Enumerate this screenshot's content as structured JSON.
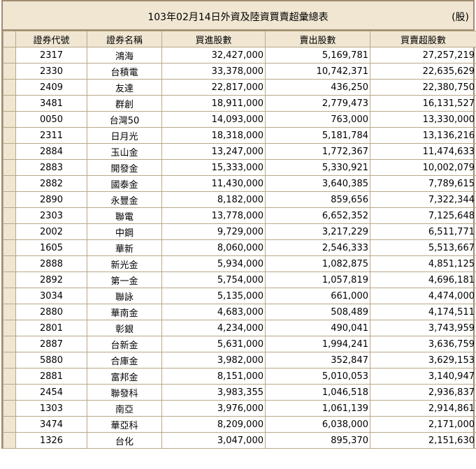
{
  "title": "103年02月14日外資及陸資買賣超彙總表",
  "unit": "(股)",
  "columns": [
    "證券代號",
    "證券名稱",
    "買進股數",
    "賣出股數",
    "買賣超股數"
  ],
  "rows": [
    {
      "code": "2317",
      "name": "鴻海",
      "buy": "32,427,000",
      "sell": "5,169,781",
      "net": "27,257,219"
    },
    {
      "code": "2330",
      "name": "台積電",
      "buy": "33,378,000",
      "sell": "10,742,371",
      "net": "22,635,629"
    },
    {
      "code": "2409",
      "name": "友達",
      "buy": "22,817,000",
      "sell": "436,250",
      "net": "22,380,750"
    },
    {
      "code": "3481",
      "name": "群創",
      "buy": "18,911,000",
      "sell": "2,779,473",
      "net": "16,131,527"
    },
    {
      "code": "0050",
      "name": "台灣50",
      "buy": "14,093,000",
      "sell": "763,000",
      "net": "13,330,000"
    },
    {
      "code": "2311",
      "name": "日月光",
      "buy": "18,318,000",
      "sell": "5,181,784",
      "net": "13,136,216"
    },
    {
      "code": "2884",
      "name": "玉山金",
      "buy": "13,247,000",
      "sell": "1,772,367",
      "net": "11,474,633"
    },
    {
      "code": "2883",
      "name": "開發金",
      "buy": "15,333,000",
      "sell": "5,330,921",
      "net": "10,002,079"
    },
    {
      "code": "2882",
      "name": "國泰金",
      "buy": "11,430,000",
      "sell": "3,640,385",
      "net": "7,789,615"
    },
    {
      "code": "2890",
      "name": "永豐金",
      "buy": "8,182,000",
      "sell": "859,656",
      "net": "7,322,344"
    },
    {
      "code": "2303",
      "name": "聯電",
      "buy": "13,778,000",
      "sell": "6,652,352",
      "net": "7,125,648"
    },
    {
      "code": "2002",
      "name": "中鋼",
      "buy": "9,729,000",
      "sell": "3,217,229",
      "net": "6,511,771"
    },
    {
      "code": "1605",
      "name": "華新",
      "buy": "8,060,000",
      "sell": "2,546,333",
      "net": "5,513,667"
    },
    {
      "code": "2888",
      "name": "新光金",
      "buy": "5,934,000",
      "sell": "1,082,875",
      "net": "4,851,125"
    },
    {
      "code": "2892",
      "name": "第一金",
      "buy": "5,754,000",
      "sell": "1,057,819",
      "net": "4,696,181"
    },
    {
      "code": "3034",
      "name": "聯詠",
      "buy": "5,135,000",
      "sell": "661,000",
      "net": "4,474,000"
    },
    {
      "code": "2880",
      "name": "華南金",
      "buy": "4,683,000",
      "sell": "508,489",
      "net": "4,174,511"
    },
    {
      "code": "2801",
      "name": "彰銀",
      "buy": "4,234,000",
      "sell": "490,041",
      "net": "3,743,959"
    },
    {
      "code": "2887",
      "name": "台新金",
      "buy": "5,631,000",
      "sell": "1,994,241",
      "net": "3,636,759"
    },
    {
      "code": "5880",
      "name": "合庫金",
      "buy": "3,982,000",
      "sell": "352,847",
      "net": "3,629,153"
    },
    {
      "code": "2881",
      "name": "富邦金",
      "buy": "8,151,000",
      "sell": "5,010,053",
      "net": "3,140,947"
    },
    {
      "code": "2454",
      "name": "聯發科",
      "buy": "3,983,355",
      "sell": "1,046,518",
      "net": "2,936,837"
    },
    {
      "code": "1303",
      "name": "南亞",
      "buy": "3,976,000",
      "sell": "1,061,139",
      "net": "2,914,861"
    },
    {
      "code": "3474",
      "name": "華亞科",
      "buy": "8,209,000",
      "sell": "6,038,000",
      "net": "2,171,000"
    },
    {
      "code": "1326",
      "name": "台化",
      "buy": "3,047,000",
      "sell": "895,370",
      "net": "2,151,630"
    }
  ]
}
